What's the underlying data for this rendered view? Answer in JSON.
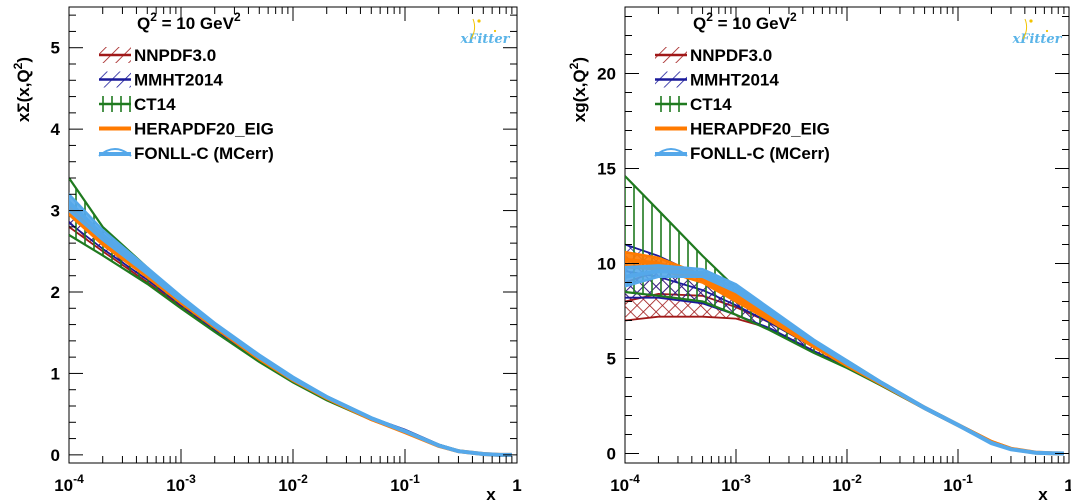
{
  "colors": {
    "NNPDF3.0": "#a01818",
    "MMHT2014": "#1a1a9a",
    "CT14": "#1f7a1f",
    "HERAPDF20_EIG": "#ff7a00",
    "FONLL-C (MCerr)": "#55a8ea"
  },
  "logo": {
    "text": "xFitter",
    "color": "#5ab4e8",
    "star_color": "#f2c300"
  },
  "chart_data": [
    {
      "type": "line",
      "panel": "left",
      "title": "",
      "annotation": {
        "base": "Q",
        "sup": "2",
        "mid": " = 10 GeV",
        "sup2": "2"
      },
      "xlabel": "x",
      "ylabel": {
        "base": "xΣ(x,Q",
        "sup": "2",
        "end": ")"
      },
      "x_scale": "log",
      "xlim": [
        0.0001,
        1
      ],
      "ylim": [
        -0.1,
        5.5
      ],
      "x_ticks": [
        {
          "value": 0.0001,
          "base": "10",
          "exp": "-4"
        },
        {
          "value": 0.001,
          "base": "10",
          "exp": "-3"
        },
        {
          "value": 0.01,
          "base": "10",
          "exp": "-2"
        },
        {
          "value": 0.1,
          "base": "10",
          "exp": "-1"
        },
        {
          "value": 1,
          "base": "1",
          "exp": ""
        }
      ],
      "y_ticks": [
        0,
        1,
        2,
        3,
        4,
        5
      ],
      "x": [
        0.0001,
        0.0002,
        0.0005,
        0.001,
        0.002,
        0.005,
        0.01,
        0.02,
        0.05,
        0.1,
        0.2,
        0.3,
        0.5,
        0.7,
        0.9
      ],
      "legend_position": "top-left",
      "series": [
        {
          "name": "NNPDF3.0",
          "style": "hatch-diag",
          "central": [
            2.95,
            2.58,
            2.18,
            1.86,
            1.56,
            1.18,
            0.92,
            0.7,
            0.44,
            0.29,
            0.12,
            0.05,
            0.01,
            0.0,
            0.0
          ],
          "lower": [
            2.8,
            2.5,
            2.12,
            1.82,
            1.53,
            1.16,
            0.9,
            0.68,
            0.43,
            0.28,
            0.115,
            0.045,
            0.008,
            0.0,
            0.0
          ],
          "upper": [
            3.1,
            2.66,
            2.24,
            1.9,
            1.59,
            1.2,
            0.94,
            0.72,
            0.45,
            0.3,
            0.125,
            0.055,
            0.012,
            0.0,
            0.0
          ]
        },
        {
          "name": "MMHT2014",
          "style": "hatch-diag",
          "central": [
            2.95,
            2.6,
            2.2,
            1.88,
            1.57,
            1.18,
            0.92,
            0.7,
            0.45,
            0.3,
            0.125,
            0.05,
            0.01,
            0.0,
            0.0
          ],
          "lower": [
            2.85,
            2.53,
            2.15,
            1.84,
            1.54,
            1.16,
            0.9,
            0.68,
            0.44,
            0.29,
            0.12,
            0.045,
            0.008,
            0.0,
            0.0
          ],
          "upper": [
            3.05,
            2.67,
            2.25,
            1.92,
            1.6,
            1.2,
            0.94,
            0.72,
            0.46,
            0.31,
            0.13,
            0.055,
            0.012,
            0.0,
            0.0
          ]
        },
        {
          "name": "CT14",
          "style": "hatch-vert",
          "central": [
            3.05,
            2.62,
            2.2,
            1.86,
            1.56,
            1.17,
            0.91,
            0.69,
            0.44,
            0.29,
            0.12,
            0.05,
            0.01,
            0.0,
            0.0
          ],
          "lower": [
            2.7,
            2.45,
            2.1,
            1.8,
            1.51,
            1.14,
            0.89,
            0.67,
            0.43,
            0.28,
            0.11,
            0.045,
            0.008,
            0.0,
            0.0
          ],
          "upper": [
            3.4,
            2.8,
            2.3,
            1.93,
            1.61,
            1.21,
            0.94,
            0.71,
            0.45,
            0.3,
            0.125,
            0.055,
            0.012,
            0.0,
            0.0
          ]
        },
        {
          "name": "HERAPDF20_EIG",
          "style": "band-solid",
          "central": [
            3.0,
            2.62,
            2.21,
            1.88,
            1.58,
            1.19,
            0.93,
            0.7,
            0.44,
            0.28,
            0.11,
            0.045,
            0.01,
            0.0,
            0.0
          ],
          "lower": [
            2.95,
            2.58,
            2.18,
            1.86,
            1.56,
            1.17,
            0.91,
            0.69,
            0.43,
            0.275,
            0.105,
            0.04,
            0.008,
            0.0,
            0.0
          ],
          "upper": [
            3.05,
            2.66,
            2.24,
            1.9,
            1.6,
            1.21,
            0.95,
            0.71,
            0.45,
            0.285,
            0.115,
            0.05,
            0.012,
            0.0,
            0.0
          ]
        },
        {
          "name": "FONLL-C (MCerr)",
          "style": "band-solid",
          "central": [
            3.1,
            2.7,
            2.26,
            1.92,
            1.6,
            1.21,
            0.94,
            0.71,
            0.45,
            0.29,
            0.115,
            0.045,
            0.01,
            0.0,
            0.0
          ],
          "lower": [
            3.0,
            2.64,
            2.22,
            1.89,
            1.58,
            1.19,
            0.92,
            0.7,
            0.44,
            0.285,
            0.11,
            0.04,
            0.008,
            0.0,
            0.0
          ],
          "upper": [
            3.2,
            2.76,
            2.3,
            1.95,
            1.62,
            1.23,
            0.96,
            0.72,
            0.46,
            0.295,
            0.12,
            0.05,
            0.012,
            0.0,
            0.0
          ]
        }
      ]
    },
    {
      "type": "line",
      "panel": "right",
      "title": "",
      "annotation": {
        "base": "Q",
        "sup": "2",
        "mid": " = 10 GeV",
        "sup2": "2"
      },
      "xlabel": "x",
      "ylabel": {
        "base": "xg(x,Q",
        "sup": "2",
        "end": ")"
      },
      "x_scale": "log",
      "xlim": [
        0.0001,
        1
      ],
      "ylim": [
        -0.5,
        23.5
      ],
      "x_ticks": [
        {
          "value": 0.0001,
          "base": "10",
          "exp": "-4"
        },
        {
          "value": 0.001,
          "base": "10",
          "exp": "-3"
        },
        {
          "value": 0.01,
          "base": "10",
          "exp": "-2"
        },
        {
          "value": 0.1,
          "base": "10",
          "exp": "-1"
        },
        {
          "value": 1,
          "base": "1",
          "exp": ""
        }
      ],
      "y_ticks": [
        0,
        5,
        10,
        15,
        20
      ],
      "x": [
        0.0001,
        0.0002,
        0.0005,
        0.001,
        0.002,
        0.005,
        0.01,
        0.02,
        0.05,
        0.1,
        0.2,
        0.3,
        0.5,
        0.7,
        0.9
      ],
      "legend_position": "top-left",
      "series": [
        {
          "name": "NNPDF3.0",
          "style": "hatch-diag",
          "central": [
            8.0,
            8.4,
            8.3,
            7.7,
            6.9,
            5.6,
            4.7,
            3.7,
            2.4,
            1.5,
            0.6,
            0.25,
            0.05,
            0.01,
            0.0
          ],
          "lower": [
            7.0,
            7.2,
            7.2,
            7.1,
            6.6,
            5.4,
            4.55,
            3.6,
            2.35,
            1.45,
            0.55,
            0.22,
            0.04,
            0.01,
            0.0
          ],
          "upper": [
            9.0,
            9.6,
            9.4,
            8.3,
            7.2,
            5.8,
            4.85,
            3.8,
            2.45,
            1.55,
            0.65,
            0.28,
            0.06,
            0.01,
            0.0
          ]
        },
        {
          "name": "MMHT2014",
          "style": "hatch-diag",
          "central": [
            9.6,
            9.3,
            8.6,
            7.8,
            6.9,
            5.6,
            4.7,
            3.7,
            2.4,
            1.5,
            0.6,
            0.25,
            0.05,
            0.01,
            0.0
          ],
          "lower": [
            8.2,
            8.2,
            7.9,
            7.3,
            6.6,
            5.4,
            4.55,
            3.6,
            2.35,
            1.45,
            0.55,
            0.22,
            0.04,
            0.01,
            0.0
          ],
          "upper": [
            11.0,
            10.4,
            9.3,
            8.3,
            7.2,
            5.8,
            4.85,
            3.8,
            2.45,
            1.55,
            0.65,
            0.28,
            0.06,
            0.01,
            0.0
          ]
        },
        {
          "name": "CT14",
          "style": "hatch-vert",
          "central": [
            11.5,
            10.6,
            9.2,
            8.0,
            7.0,
            5.6,
            4.7,
            3.7,
            2.4,
            1.5,
            0.6,
            0.25,
            0.05,
            0.01,
            0.0
          ],
          "lower": [
            8.5,
            8.3,
            8.0,
            7.3,
            6.5,
            5.3,
            4.5,
            3.6,
            2.35,
            1.45,
            0.55,
            0.22,
            0.04,
            0.01,
            0.0
          ],
          "upper": [
            14.6,
            12.8,
            10.4,
            8.7,
            7.5,
            5.9,
            4.9,
            3.8,
            2.45,
            1.55,
            0.65,
            0.28,
            0.06,
            0.01,
            0.0
          ]
        },
        {
          "name": "HERAPDF20_EIG",
          "style": "band-solid",
          "central": [
            10.2,
            10.0,
            9.2,
            8.2,
            7.1,
            5.7,
            4.7,
            3.7,
            2.4,
            1.5,
            0.6,
            0.25,
            0.05,
            0.01,
            0.0
          ],
          "lower": [
            9.8,
            9.7,
            9.0,
            8.0,
            7.0,
            5.6,
            4.6,
            3.65,
            2.35,
            1.45,
            0.55,
            0.22,
            0.04,
            0.01,
            0.0
          ],
          "upper": [
            10.6,
            10.3,
            9.4,
            8.4,
            7.2,
            5.8,
            4.8,
            3.75,
            2.45,
            1.55,
            0.65,
            0.28,
            0.06,
            0.01,
            0.0
          ]
        },
        {
          "name": "FONLL-C (MCerr)",
          "style": "band-solid",
          "central": [
            9.3,
            9.6,
            9.5,
            8.7,
            7.5,
            5.9,
            4.8,
            3.75,
            2.4,
            1.5,
            0.55,
            0.22,
            0.04,
            0.01,
            0.0
          ],
          "lower": [
            8.8,
            9.3,
            9.3,
            8.5,
            7.35,
            5.8,
            4.7,
            3.7,
            2.35,
            1.45,
            0.52,
            0.2,
            0.03,
            0.01,
            0.0
          ],
          "upper": [
            9.8,
            9.9,
            9.7,
            8.9,
            7.65,
            6.0,
            4.9,
            3.8,
            2.45,
            1.55,
            0.6,
            0.25,
            0.05,
            0.01,
            0.0
          ]
        }
      ]
    }
  ]
}
